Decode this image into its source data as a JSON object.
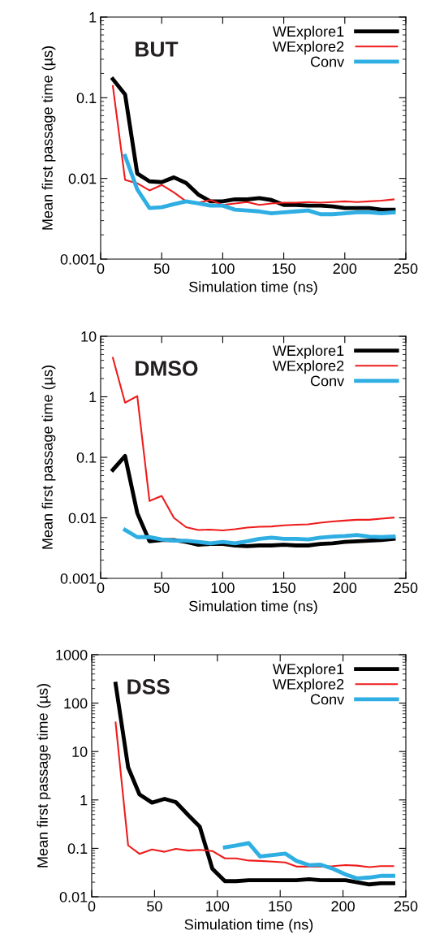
{
  "chart_data": [
    {
      "type": "line",
      "title": "BUT",
      "xlabel": "Simulation time (ns)",
      "ylabel": "Mean first passage time (µs)",
      "log": "y",
      "xlim": [
        0,
        250
      ],
      "xticks": [
        0,
        50,
        100,
        150,
        200,
        250
      ],
      "ylim": [
        0.001,
        1
      ],
      "yticks": [
        0.001,
        0.01,
        0.1,
        1
      ],
      "legend": "top right",
      "grid": false,
      "series": [
        {
          "name": "WExplore1",
          "color": "#000000",
          "x": [
            10,
            20,
            30,
            40,
            50,
            60,
            70,
            80,
            90,
            100,
            110,
            120,
            130,
            140,
            150,
            160,
            170,
            180,
            190,
            200,
            210,
            220,
            230,
            240
          ],
          "values": [
            0.17,
            0.11,
            0.0115,
            0.0092,
            0.009,
            0.0103,
            0.0088,
            0.0063,
            0.0052,
            0.0052,
            0.0055,
            0.0055,
            0.0057,
            0.0054,
            0.0047,
            0.0047,
            0.0046,
            0.0046,
            0.0045,
            0.0043,
            0.0043,
            0.0043,
            0.0041,
            0.0041
          ]
        },
        {
          "name": "WExplore2",
          "color": "#ee1c1c",
          "x": [
            10,
            20,
            30,
            40,
            50,
            60,
            70,
            80,
            90,
            100,
            110,
            120,
            130,
            140,
            150,
            160,
            170,
            180,
            190,
            200,
            210,
            220,
            230,
            240
          ],
          "values": [
            0.14,
            0.0096,
            0.0087,
            0.0071,
            0.0083,
            0.0067,
            0.0052,
            0.005,
            0.0054,
            0.0047,
            0.0049,
            0.0051,
            0.0047,
            0.0049,
            0.005,
            0.005,
            0.0051,
            0.005,
            0.0051,
            0.0052,
            0.0051,
            0.0052,
            0.0053,
            0.0055
          ]
        },
        {
          "name": "Conv",
          "color": "#2eaee2",
          "x": [
            20,
            30,
            40,
            50,
            60,
            70,
            80,
            90,
            100,
            110,
            120,
            130,
            140,
            150,
            160,
            170,
            180,
            190,
            200,
            210,
            220,
            230,
            240
          ],
          "values": [
            0.019,
            0.0073,
            0.0043,
            0.0044,
            0.0048,
            0.0052,
            0.0049,
            0.0046,
            0.0046,
            0.0041,
            0.004,
            0.0039,
            0.0037,
            0.0038,
            0.0039,
            0.004,
            0.0036,
            0.0036,
            0.0037,
            0.0038,
            0.0038,
            0.0037,
            0.0038
          ]
        }
      ]
    },
    {
      "type": "line",
      "title": "DMSO",
      "xlabel": "Simulation time (ns)",
      "ylabel": "Mean first passage time (µs)",
      "log": "y",
      "xlim": [
        0,
        250
      ],
      "xticks": [
        0,
        50,
        100,
        150,
        200,
        250
      ],
      "ylim": [
        0.001,
        10
      ],
      "yticks": [
        0.001,
        0.01,
        0.1,
        1,
        10
      ],
      "legend": "top right",
      "grid": false,
      "series": [
        {
          "name": "WExplore1",
          "color": "#000000",
          "x": [
            10,
            20,
            30,
            40,
            50,
            60,
            70,
            80,
            90,
            100,
            110,
            120,
            130,
            140,
            150,
            160,
            170,
            180,
            190,
            200,
            210,
            220,
            230,
            240
          ],
          "values": [
            0.062,
            0.105,
            0.012,
            0.0041,
            0.0043,
            0.0043,
            0.004,
            0.0036,
            0.0037,
            0.0037,
            0.0035,
            0.0034,
            0.0035,
            0.0035,
            0.0036,
            0.0035,
            0.0035,
            0.0037,
            0.0038,
            0.004,
            0.0041,
            0.0042,
            0.0043,
            0.0045
          ]
        },
        {
          "name": "WExplore2",
          "color": "#ee1c1c",
          "x": [
            10,
            20,
            30,
            40,
            50,
            60,
            70,
            80,
            90,
            100,
            110,
            120,
            130,
            140,
            150,
            160,
            170,
            180,
            190,
            200,
            210,
            220,
            230,
            240
          ],
          "values": [
            4.4,
            0.8,
            1.03,
            0.019,
            0.023,
            0.01,
            0.007,
            0.0063,
            0.0064,
            0.0062,
            0.0065,
            0.0069,
            0.0071,
            0.0072,
            0.0075,
            0.0077,
            0.0078,
            0.0083,
            0.0087,
            0.009,
            0.0093,
            0.0093,
            0.0097,
            0.0101
          ]
        },
        {
          "name": "Conv",
          "color": "#2eaee2",
          "x": [
            20,
            30,
            40,
            50,
            60,
            70,
            80,
            90,
            100,
            110,
            120,
            130,
            140,
            150,
            160,
            170,
            180,
            190,
            200,
            210,
            220,
            230,
            240
          ],
          "values": [
            0.0063,
            0.0048,
            0.0048,
            0.0044,
            0.0042,
            0.0042,
            0.004,
            0.0038,
            0.004,
            0.0038,
            0.0041,
            0.0045,
            0.0047,
            0.0045,
            0.0045,
            0.0044,
            0.0047,
            0.0049,
            0.005,
            0.0052,
            0.0049,
            0.0048,
            0.0049
          ]
        }
      ]
    },
    {
      "type": "line",
      "title": "DSS",
      "xlabel": "Simulation time (ns)",
      "ylabel": "Mean first passage time (µs)",
      "log": "y",
      "xlim": [
        0,
        250
      ],
      "xticks": [
        0,
        50,
        100,
        150,
        200,
        250
      ],
      "ylim": [
        0.01,
        1000
      ],
      "yticks": [
        0.01,
        0.1,
        1,
        10,
        100,
        1000
      ],
      "legend": "top right",
      "grid": false,
      "series": [
        {
          "name": "WExplore1",
          "color": "#000000",
          "x": [
            19,
            29,
            38,
            48,
            58,
            67,
            77,
            86,
            96,
            106,
            115,
            125,
            134,
            144,
            154,
            163,
            173,
            182,
            192,
            202,
            211,
            221,
            230,
            240
          ],
          "values": [
            250,
            4.7,
            1.3,
            0.88,
            1.05,
            0.9,
            0.48,
            0.28,
            0.038,
            0.021,
            0.021,
            0.022,
            0.022,
            0.022,
            0.022,
            0.022,
            0.023,
            0.022,
            0.022,
            0.022,
            0.02,
            0.018,
            0.019,
            0.019
          ]
        },
        {
          "name": "WExplore2",
          "color": "#ee1c1c",
          "x": [
            19,
            29,
            38,
            48,
            58,
            67,
            77,
            86,
            96,
            106,
            115,
            125,
            134,
            144,
            154,
            163,
            173,
            182,
            192,
            202,
            211,
            221,
            230,
            240
          ],
          "values": [
            40,
            0.115,
            0.077,
            0.095,
            0.085,
            0.098,
            0.09,
            0.093,
            0.088,
            0.062,
            0.062,
            0.056,
            0.055,
            0.053,
            0.051,
            0.042,
            0.042,
            0.042,
            0.043,
            0.045,
            0.044,
            0.041,
            0.043,
            0.043
          ]
        },
        {
          "name": "Conv",
          "color": "#2eaee2",
          "x": [
            106,
            115,
            125,
            134,
            144,
            154,
            163,
            173,
            182,
            192,
            202,
            211,
            221,
            230,
            240
          ],
          "values": [
            0.105,
            0.115,
            0.128,
            0.068,
            0.073,
            0.078,
            0.055,
            0.045,
            0.046,
            0.038,
            0.029,
            0.024,
            0.025,
            0.027,
            0.027
          ]
        }
      ]
    }
  ]
}
